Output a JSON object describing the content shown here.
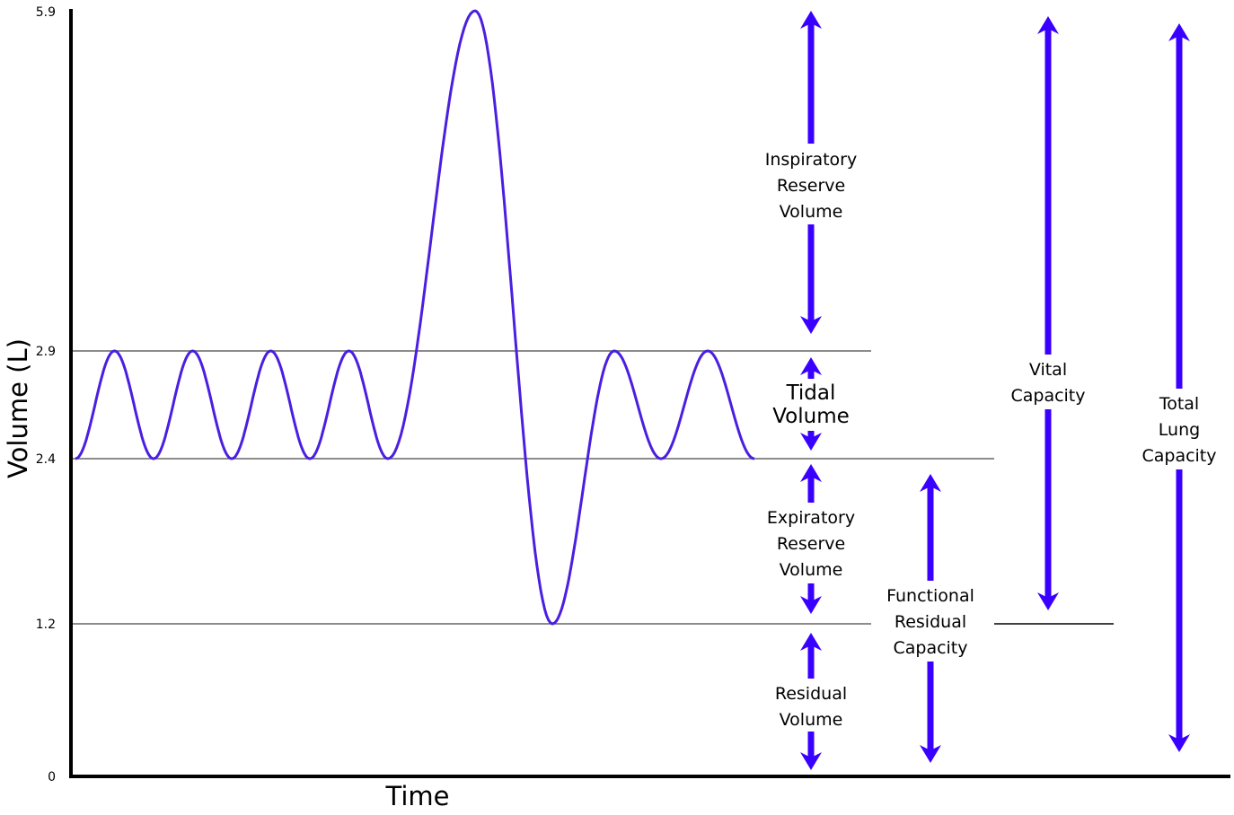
{
  "chart_data": {
    "type": "line",
    "xlabel": "Time",
    "ylabel": "Volume (L)",
    "ylim": [
      0,
      5.9
    ],
    "yticks": [
      {
        "label": "0",
        "value": 0
      },
      {
        "label": "1.2",
        "value": 1.2
      },
      {
        "label": "2.4",
        "value": 2.4
      },
      {
        "label": "2.9",
        "value": 2.9
      },
      {
        "label": "5.9",
        "value": 5.9
      }
    ],
    "reference_lines": [
      2.9,
      2.4,
      1.2
    ],
    "trace": {
      "color": "#4a1fe0",
      "tidal_breaths_before": 4,
      "tidal_breaths_after": 2,
      "baseline": 2.4,
      "tidal_peak": 2.9,
      "max_inspiration": 5.9,
      "max_expiration": 1.2
    },
    "segments": [
      {
        "id": "inspiratory-reserve-volume",
        "lines": [
          "Inspiratory",
          "Reserve",
          "Volume"
        ],
        "from": 2.9,
        "to": 5.9
      },
      {
        "id": "tidal-volume",
        "lines": [
          "Tidal",
          "Volume"
        ],
        "from": 2.4,
        "to": 2.9
      },
      {
        "id": "expiratory-reserve-volume",
        "lines": [
          "Expiratory",
          "Reserve",
          "Volume"
        ],
        "from": 1.2,
        "to": 2.4
      },
      {
        "id": "residual-volume",
        "lines": [
          "Residual",
          "Volume"
        ],
        "from": 0,
        "to": 1.2
      },
      {
        "id": "functional-residual-capacity",
        "lines": [
          "Functional",
          "Residual",
          "Capacity"
        ],
        "from": 0,
        "to": 2.4
      },
      {
        "id": "vital-capacity",
        "lines": [
          "Vital",
          "Capacity"
        ],
        "from": 1.2,
        "to": 5.9
      },
      {
        "id": "total-lung-capacity",
        "lines": [
          "Total",
          "Lung",
          "Capacity"
        ],
        "from": 0,
        "to": 5.9
      }
    ],
    "arrow_color": "#3a00ff"
  }
}
